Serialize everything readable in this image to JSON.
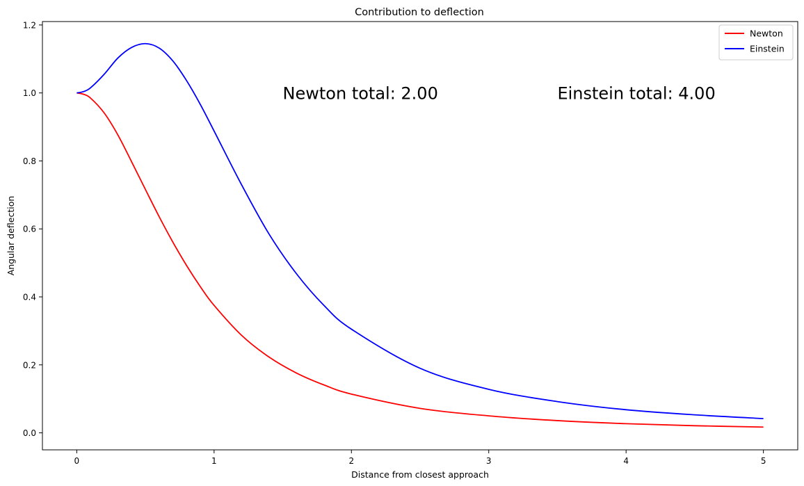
{
  "chart_data": {
    "type": "line",
    "title": "Contribution to deflection",
    "xlabel": "Distance from closest approach",
    "ylabel": "Angular deflection",
    "xlim": [
      -0.25,
      5.25
    ],
    "ylim": [
      -0.05,
      1.21
    ],
    "xticks": [
      "0",
      "1",
      "2",
      "3",
      "4",
      "5"
    ],
    "yticks": [
      "0.0",
      "0.2",
      "0.4",
      "0.6",
      "0.8",
      "1.0",
      "1.2"
    ],
    "legend_position": "top-right",
    "grid": false,
    "series": [
      {
        "name": "Newton",
        "color": "#ff0000",
        "x": [
          0,
          0.05,
          0.1,
          0.2,
          0.3,
          0.4,
          0.5,
          0.6,
          0.7,
          0.8,
          0.9,
          1.0,
          1.2,
          1.4,
          1.6,
          1.8,
          2.0,
          2.5,
          3.0,
          3.5,
          4.0,
          4.5,
          5.0
        ],
        "y": [
          1.0,
          0.996,
          0.985,
          0.941,
          0.876,
          0.797,
          0.716,
          0.636,
          0.561,
          0.492,
          0.43,
          0.375,
          0.287,
          0.223,
          0.176,
          0.141,
          0.114,
          0.072,
          0.05,
          0.036,
          0.027,
          0.021,
          0.017
        ]
      },
      {
        "name": "Einstein",
        "color": "#0000ff",
        "x": [
          0,
          0.05,
          0.1,
          0.2,
          0.3,
          0.4,
          0.5,
          0.6,
          0.7,
          0.8,
          0.9,
          1.0,
          1.2,
          1.4,
          1.6,
          1.8,
          2.0,
          2.5,
          3.0,
          3.5,
          4.0,
          4.5,
          5.0
        ],
        "y": [
          1.0,
          1.004,
          1.015,
          1.055,
          1.103,
          1.134,
          1.145,
          1.132,
          1.094,
          1.036,
          0.966,
          0.888,
          0.73,
          0.585,
          0.468,
          0.375,
          0.305,
          0.19,
          0.128,
          0.092,
          0.068,
          0.053,
          0.042
        ]
      }
    ],
    "annotations": [
      {
        "text": "Newton total: 2.00",
        "x": 1.5,
        "y": 1.0
      },
      {
        "text": "Einstein total: 4.00",
        "x": 3.5,
        "y": 1.0
      }
    ]
  }
}
